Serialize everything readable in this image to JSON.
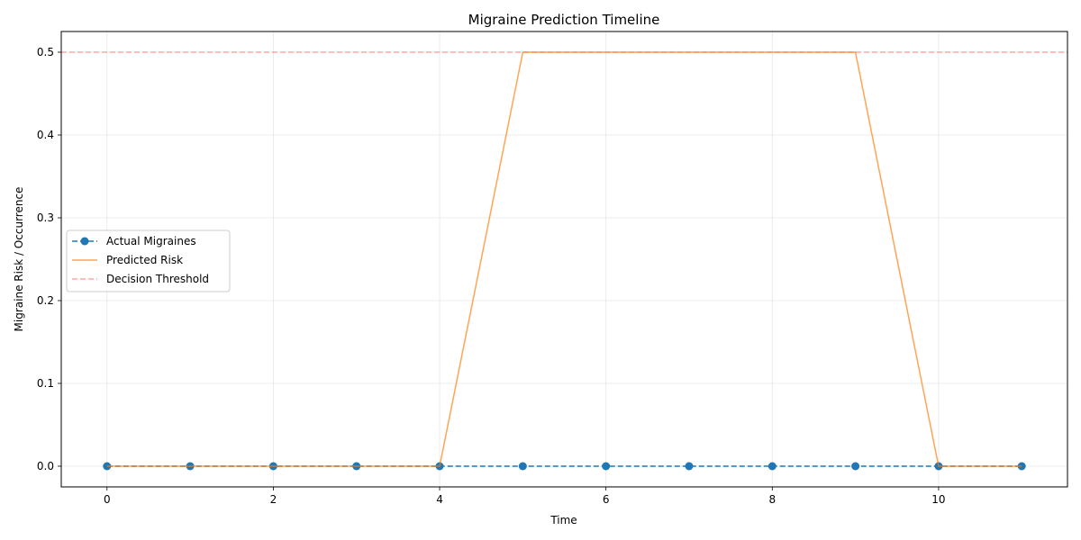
{
  "chart_data": {
    "type": "line",
    "title": "Migraine Prediction Timeline",
    "xlabel": "Time",
    "ylabel": "Migraine Risk / Occurrence",
    "xlim": [
      -0.55,
      11.55
    ],
    "ylim": [
      -0.025,
      0.525
    ],
    "xticks": [
      0,
      2,
      4,
      6,
      8,
      10
    ],
    "yticks": [
      0.0,
      0.1,
      0.2,
      0.3,
      0.4,
      0.5
    ],
    "xtick_labels": [
      "0",
      "2",
      "4",
      "6",
      "8",
      "10"
    ],
    "ytick_labels": [
      "0.0",
      "0.1",
      "0.2",
      "0.3",
      "0.4",
      "0.5"
    ],
    "grid": true,
    "legend": "center-left",
    "x": [
      0,
      1,
      2,
      3,
      4,
      5,
      6,
      7,
      8,
      9,
      10,
      11
    ],
    "series": [
      {
        "name": "Actual Migraines",
        "values": [
          0,
          0,
          0,
          0,
          0,
          0,
          0,
          0,
          0,
          0,
          0,
          0
        ],
        "color": "#1f77b4",
        "style": "dashed-markers"
      },
      {
        "name": "Predicted Risk",
        "values": [
          0,
          0,
          0,
          0,
          0,
          0.5,
          0.5,
          0.5,
          0.5,
          0.5,
          0,
          0
        ],
        "color": "#ff7f0e",
        "style": "solid"
      }
    ],
    "threshold": {
      "name": "Decision Threshold",
      "value": 0.5,
      "color": "#ff9896",
      "style": "dashed"
    }
  }
}
